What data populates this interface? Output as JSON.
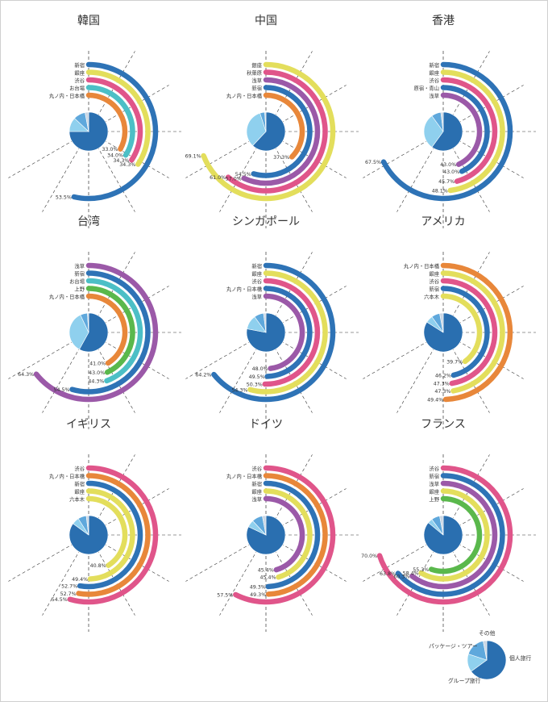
{
  "colors": {
    "pie": [
      "#2a6fb0",
      "#8fd0ee",
      "#5fa8dc",
      "#c9d6e4"
    ],
    "grid": "#333333",
    "text": "#333333"
  },
  "chart_data": [
    {
      "type": "radial-bar",
      "title": "韓国",
      "max_percent": 100,
      "series": [
        {
          "name": "新宿",
          "value": 53.5,
          "label": "53.5%",
          "color": "#2e73b6"
        },
        {
          "name": "銀座",
          "value": 34.3,
          "label": "34.3%",
          "color": "#e3de5c"
        },
        {
          "name": "渋谷",
          "value": 34.3,
          "label": "34.3%",
          "color": "#e0558a"
        },
        {
          "name": "お台場",
          "value": 34.0,
          "label": "34.0%",
          "color": "#4cbfc6"
        },
        {
          "name": "丸ノ内・日本橋",
          "value": 33.0,
          "label": "33.0%",
          "color": "#e8873a"
        }
      ],
      "pie": [
        75,
        12,
        10,
        3
      ]
    },
    {
      "type": "radial-bar",
      "title": "中国",
      "max_percent": 100,
      "series": [
        {
          "name": "銀座",
          "value": 69.1,
          "label": "69.1%",
          "color": "#e3de5c"
        },
        {
          "name": "秋葉原",
          "value": 61.0,
          "label": "61.0%",
          "color": "#e0558a"
        },
        {
          "name": "浅草",
          "value": 57.0,
          "label": "57.0%",
          "color": "#9b59a8"
        },
        {
          "name": "新宿",
          "value": 54.5,
          "label": "54.5%",
          "color": "#2e73b6"
        },
        {
          "name": "丸ノ内・日本橋",
          "value": 37.3,
          "label": "37.3%",
          "color": "#e8873a"
        }
      ],
      "pie": [
        62,
        33,
        4,
        1
      ]
    },
    {
      "type": "radial-bar",
      "title": "香港",
      "max_percent": 100,
      "series": [
        {
          "name": "新宿",
          "value": 67.5,
          "label": "67.5%",
          "color": "#2e73b6"
        },
        {
          "name": "銀座",
          "value": 48.1,
          "label": "48.1%",
          "color": "#e3de5c"
        },
        {
          "name": "渋谷",
          "value": 45.7,
          "label": "45.7%",
          "color": "#e0558a"
        },
        {
          "name": "原宿・青山",
          "value": 43.0,
          "label": "43.0%",
          "color": "#2e73b6"
        },
        {
          "name": "浅草",
          "value": 43.0,
          "label": "43.0%",
          "color": "#9b59a8"
        }
      ],
      "pie": [
        60,
        30,
        8,
        2
      ]
    },
    {
      "type": "radial-bar",
      "title": "台湾",
      "max_percent": 100,
      "series": [
        {
          "name": "浅草",
          "value": 64.3,
          "label": "64.3%",
          "color": "#9b59a8"
        },
        {
          "name": "新宿",
          "value": 54.5,
          "label": "54.5%",
          "color": "#2e73b6"
        },
        {
          "name": "お台場",
          "value": 44.3,
          "label": "44.3%",
          "color": "#4cbfc6"
        },
        {
          "name": "上野",
          "value": 43.0,
          "label": "43.0%",
          "color": "#5ab84c"
        },
        {
          "name": "丸ノ内・日本橋",
          "value": 41.0,
          "label": "41.0%",
          "color": "#e8873a"
        }
      ],
      "pie": [
        58,
        35,
        6,
        1
      ]
    },
    {
      "type": "radial-bar",
      "title": "シンガポール",
      "max_percent": 100,
      "series": [
        {
          "name": "新宿",
          "value": 64.2,
          "label": "64.2%",
          "color": "#2e73b6"
        },
        {
          "name": "銀座",
          "value": 54.3,
          "label": "54.3%",
          "color": "#e3de5c"
        },
        {
          "name": "渋谷",
          "value": 50.3,
          "label": "50.3%",
          "color": "#e0558a"
        },
        {
          "name": "丸ノ内・日本橋",
          "value": 49.5,
          "label": "49.5%",
          "color": "#2e73b6"
        },
        {
          "name": "浅草",
          "value": 48.0,
          "label": "48.0%",
          "color": "#9b59a8"
        }
      ],
      "pie": [
        78,
        12,
        8,
        2
      ]
    },
    {
      "type": "radial-bar",
      "title": "アメリカ",
      "max_percent": 100,
      "series": [
        {
          "name": "丸ノ内・日本橋",
          "value": 49.4,
          "label": "49.4%",
          "color": "#e8873a"
        },
        {
          "name": "銀座",
          "value": 47.3,
          "label": "47.3%",
          "color": "#e3de5c"
        },
        {
          "name": "渋谷",
          "value": 47.3,
          "label": "47.3%",
          "color": "#e0558a"
        },
        {
          "name": "新宿",
          "value": 46.2,
          "label": "46.2%",
          "color": "#2e73b6"
        },
        {
          "name": "六本木",
          "value": 39.7,
          "label": "39.7%",
          "color": "#e3de5c"
        }
      ],
      "pie": [
        84,
        6,
        7,
        3
      ]
    },
    {
      "type": "radial-bar",
      "title": "イギリス",
      "max_percent": 100,
      "series": [
        {
          "name": "渋谷",
          "value": 54.5,
          "label": "54.5%",
          "color": "#e0558a"
        },
        {
          "name": "丸ノ内・日本橋",
          "value": 52.7,
          "label": "52.7%",
          "color": "#e8873a"
        },
        {
          "name": "新宿",
          "value": 52.7,
          "label": "52.7%",
          "color": "#2e73b6"
        },
        {
          "name": "銀座",
          "value": 49.4,
          "label": "49.4%",
          "color": "#e3de5c"
        },
        {
          "name": "六本木",
          "value": 40.8,
          "label": "40.8%",
          "color": "#e3de5c"
        }
      ],
      "pie": [
        85,
        6,
        7,
        2
      ]
    },
    {
      "type": "radial-bar",
      "title": "ドイツ",
      "max_percent": 100,
      "series": [
        {
          "name": "渋谷",
          "value": 57.5,
          "label": "57.5%",
          "color": "#e0558a"
        },
        {
          "name": "丸ノ内・日本橋",
          "value": 49.3,
          "label": "49.3%",
          "color": "#e8873a"
        },
        {
          "name": "新宿",
          "value": 49.3,
          "label": "49.3%",
          "color": "#2e73b6"
        },
        {
          "name": "銀座",
          "value": 45.4,
          "label": "45.4%",
          "color": "#e3de5c"
        },
        {
          "name": "浅草",
          "value": 45.4,
          "label": "45.4%",
          "color": "#9b59a8"
        }
      ],
      "pie": [
        82,
        6,
        9,
        3
      ]
    },
    {
      "type": "radial-bar",
      "title": "フランス",
      "max_percent": 100,
      "series": [
        {
          "name": "渋谷",
          "value": 70.0,
          "label": "70.0%",
          "color": "#e0558a"
        },
        {
          "name": "新宿",
          "value": 63.8,
          "label": "63.8%",
          "color": "#2e73b6"
        },
        {
          "name": "浅草",
          "value": 60.3,
          "label": "60.3%",
          "color": "#9b59a8"
        },
        {
          "name": "銀座",
          "value": 58.4,
          "label": "58.4%",
          "color": "#e3de5c"
        },
        {
          "name": "上野",
          "value": 55.3,
          "label": "55.3%",
          "color": "#5ab84c"
        }
      ],
      "pie": [
        86,
        4,
        7,
        3
      ]
    }
  ],
  "legend": {
    "items": [
      {
        "label": "個人旅行",
        "value": 65
      },
      {
        "label": "グループ旅行",
        "value": 15
      },
      {
        "label": "パッケージ・ツアー",
        "value": 17
      },
      {
        "label": "その他",
        "value": 3
      }
    ]
  }
}
